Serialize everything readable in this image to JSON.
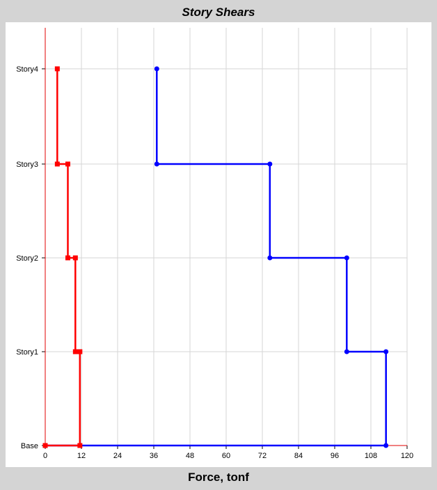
{
  "chart_data": {
    "type": "line",
    "title": "Story Shears",
    "xlabel": "Force, tonf",
    "ylabel": "",
    "xlim": [
      0,
      120
    ],
    "x_ticks": [
      "0",
      "12",
      "24",
      "36",
      "48",
      "60",
      "72",
      "84",
      "96",
      "108",
      "120"
    ],
    "y_categories": [
      "Base",
      "Story1",
      "Story2",
      "Story3",
      "Story4"
    ],
    "grid": true,
    "series": [
      {
        "color": "#0000ff",
        "marker": "circle",
        "points": [
          {
            "x": 37,
            "y": "Story4"
          },
          {
            "x": 37,
            "y": "Story3"
          },
          {
            "x": 74.5,
            "y": "Story3"
          },
          {
            "x": 74.5,
            "y": "Story2"
          },
          {
            "x": 100,
            "y": "Story2"
          },
          {
            "x": 100,
            "y": "Story1"
          },
          {
            "x": 113,
            "y": "Story1"
          },
          {
            "x": 113,
            "y": "Base"
          },
          {
            "x": 0,
            "y": "Base"
          }
        ]
      },
      {
        "color": "#ff0000",
        "marker": "square",
        "points": [
          {
            "x": 4,
            "y": "Story4"
          },
          {
            "x": 4,
            "y": "Story3"
          },
          {
            "x": 7.5,
            "y": "Story3"
          },
          {
            "x": 7.5,
            "y": "Story2"
          },
          {
            "x": 10,
            "y": "Story2"
          },
          {
            "x": 10,
            "y": "Story1"
          },
          {
            "x": 11.5,
            "y": "Story1"
          },
          {
            "x": 11.5,
            "y": "Base"
          },
          {
            "x": 0,
            "y": "Base"
          }
        ]
      }
    ]
  }
}
